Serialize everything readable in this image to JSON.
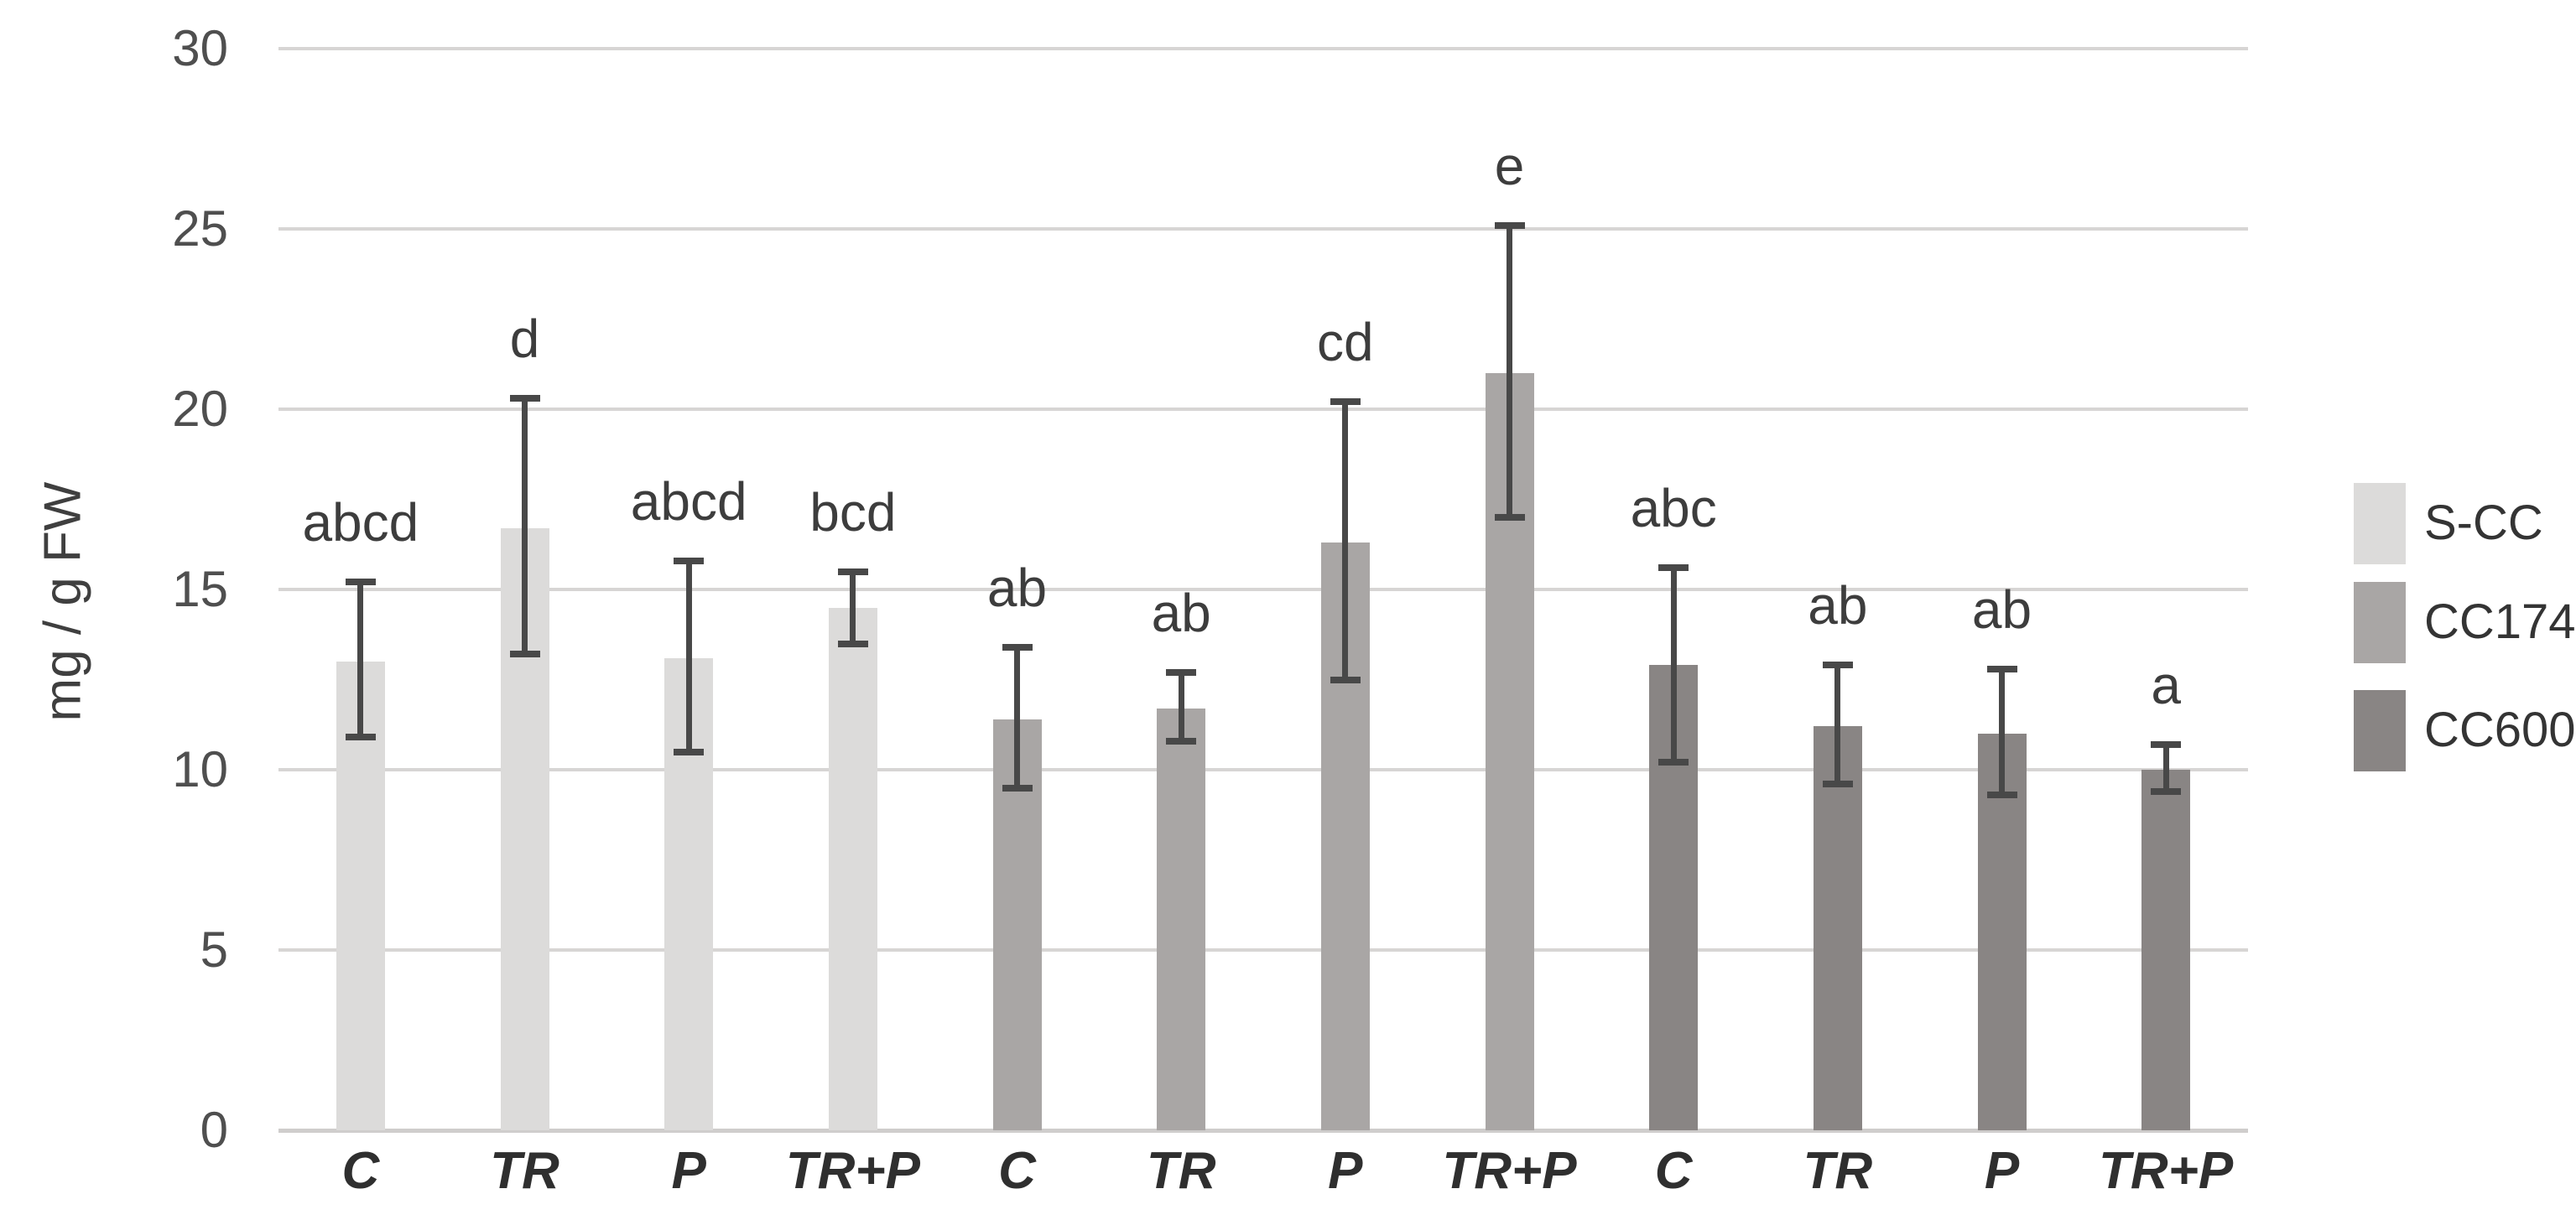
{
  "chart_data": {
    "type": "bar",
    "title": "",
    "xlabel": "",
    "ylabel": "mg / g FW",
    "ylim": [
      0,
      30
    ],
    "yticks": [
      0,
      5,
      10,
      15,
      20,
      25,
      30
    ],
    "grid": true,
    "legend_position": "right",
    "group_labels": [
      "C",
      "TR",
      "P",
      "TR+P"
    ],
    "series": [
      {
        "name": "S-CC",
        "color": "#dcdbda",
        "categories": [
          "C",
          "TR",
          "P",
          "TR+P"
        ],
        "values": [
          13.0,
          16.7,
          13.1,
          14.5
        ],
        "err_low": [
          10.9,
          13.2,
          10.5,
          13.5
        ],
        "err_high": [
          15.2,
          20.3,
          15.8,
          15.5
        ],
        "letters": [
          "abcd",
          "d",
          "abcd",
          "bcd"
        ]
      },
      {
        "name": "CC174",
        "color": "#a9a6a5",
        "categories": [
          "C",
          "TR",
          "P",
          "TR+P"
        ],
        "values": [
          11.4,
          11.7,
          16.3,
          21.0
        ],
        "err_low": [
          9.5,
          10.8,
          12.5,
          17.0
        ],
        "err_high": [
          13.4,
          12.7,
          20.2,
          25.1
        ],
        "letters": [
          "ab",
          "ab",
          "cd",
          "e"
        ]
      },
      {
        "name": "CC600",
        "color": "#898584",
        "categories": [
          "C",
          "TR",
          "P",
          "TR+P"
        ],
        "values": [
          12.9,
          11.2,
          11.0,
          10.0
        ],
        "err_low": [
          10.2,
          9.6,
          9.3,
          9.4
        ],
        "err_high": [
          15.6,
          12.9,
          12.8,
          10.7
        ],
        "letters": [
          "abc",
          "ab",
          "ab",
          "a"
        ]
      }
    ],
    "legend": {
      "entries": [
        {
          "label": "S-CC",
          "color": "#dcdbda"
        },
        {
          "label": "CC174",
          "color": "#a9a6a5"
        },
        {
          "label": "CC600",
          "color": "#898584"
        }
      ]
    },
    "style": {
      "gridline_color": "#d7d5d4",
      "axisline_color": "#cfcdcc",
      "errorbar_color": "#484848",
      "tick_text_color": "#4f4f4f"
    }
  }
}
